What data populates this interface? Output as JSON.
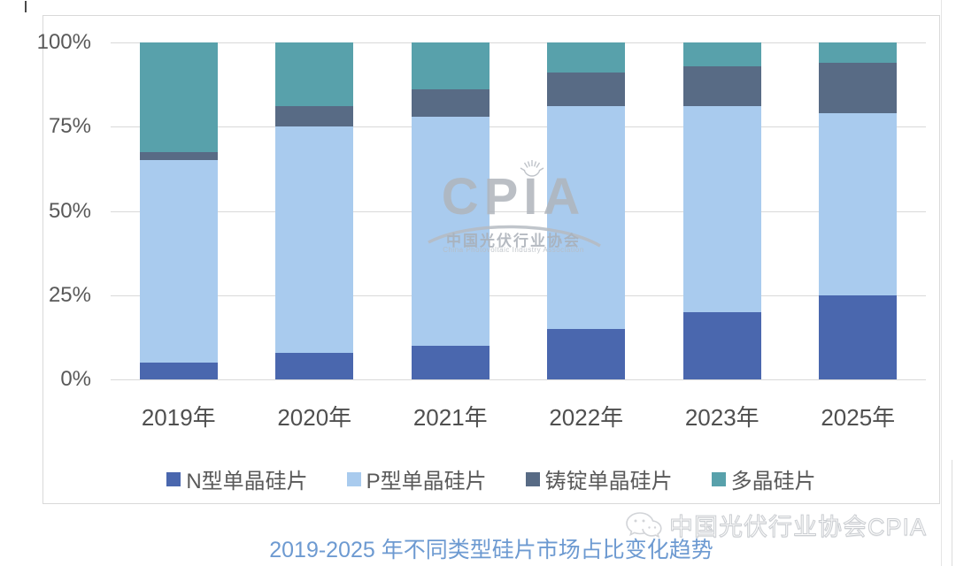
{
  "chart_data": {
    "type": "bar",
    "subtype": "stacked-percent",
    "title": "2019-2025 年不同类型硅片市场占比变化趋势",
    "categories": [
      "2019年",
      "2020年",
      "2021年",
      "2022年",
      "2023年",
      "2025年"
    ],
    "series": [
      {
        "name": "N型单晶硅片",
        "color": "#4a67ae",
        "values": [
          5,
          8,
          10,
          15,
          20,
          25
        ]
      },
      {
        "name": "P型单晶硅片",
        "color": "#a9cbee",
        "values": [
          60,
          67,
          68,
          66,
          61,
          54
        ]
      },
      {
        "name": "铸锭单晶硅片",
        "color": "#586b85",
        "values": [
          2.5,
          6,
          8,
          10,
          12,
          15
        ]
      },
      {
        "name": "多晶硅片",
        "color": "#58a1ab",
        "values": [
          32.5,
          19,
          14,
          9,
          7,
          6
        ]
      }
    ],
    "ylabel": "",
    "xlabel": "",
    "ylim": [
      0,
      100
    ],
    "y_ticks": [
      {
        "label": "100%",
        "value": 100
      },
      {
        "label": "75%",
        "value": 75
      },
      {
        "label": "50%",
        "value": 50
      },
      {
        "label": "25%",
        "value": 25
      },
      {
        "label": "0%",
        "value": 0
      }
    ],
    "grid": true,
    "legend_position": "bottom"
  },
  "watermark": {
    "logo_text": "CPIA",
    "cn_name": "中国光伏行业协会",
    "en_name": "China Photovoltaic Industry Association"
  },
  "footer": {
    "title": "2019-2025 年不同类型硅片市场占比变化趋势",
    "brand": "中国光伏行业协会CPIA"
  },
  "colors": {
    "grid": "#d9d9d9",
    "axis_text": "#595959",
    "title_text": "#6d9ad1",
    "watermark_gray": "#b0b5bc"
  }
}
